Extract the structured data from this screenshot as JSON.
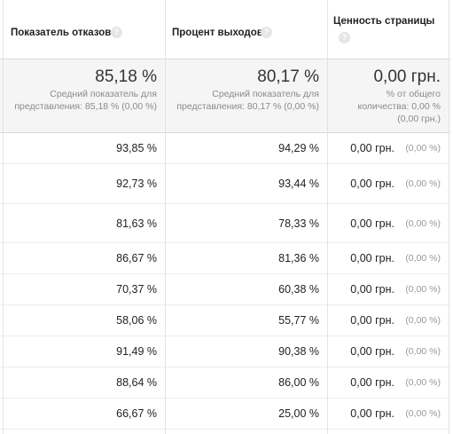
{
  "headers": {
    "bounce_rate": "Показатель отказов",
    "exit_rate": "Процент выходов",
    "page_value": "Ценность страницы"
  },
  "summary": {
    "bounce_rate": {
      "value": "85,18 %",
      "sub1": "Средний показатель для",
      "sub2": "представления: 85,18 % (0,00 %)"
    },
    "exit_rate": {
      "value": "80,17 %",
      "sub1": "Средний показатель для",
      "sub2": "представления: 80,17 % (0,00 %)"
    },
    "page_value": {
      "value": "0,00 грн.",
      "sub1": "% от общего",
      "sub2": "количества: 0,00 %",
      "sub3": "(0,00 грн.)"
    }
  },
  "rows": [
    {
      "bounce": "93,85 %",
      "exit": "94,29 %",
      "value": "0,00 грн.",
      "value_pct": "(0,00 %)"
    },
    {
      "bounce": "92,73 %",
      "exit": "93,44 %",
      "value": "0,00 грн.",
      "value_pct": "(0,00 %)"
    },
    {
      "bounce": "81,63 %",
      "exit": "78,33 %",
      "value": "0,00 грн.",
      "value_pct": "(0,00 %)"
    },
    {
      "bounce": "86,67 %",
      "exit": "81,36 %",
      "value": "0,00 грн.",
      "value_pct": "(0,00 %)"
    },
    {
      "bounce": "70,37 %",
      "exit": "60,38 %",
      "value": "0,00 грн.",
      "value_pct": "(0,00 %)"
    },
    {
      "bounce": "58,06 %",
      "exit": "55,77 %",
      "value": "0,00 грн.",
      "value_pct": "(0,00 %)"
    },
    {
      "bounce": "91,49 %",
      "exit": "90,38 %",
      "value": "0,00 грн.",
      "value_pct": "(0,00 %)"
    },
    {
      "bounce": "88,64 %",
      "exit": "86,00 %",
      "value": "0,00 грн.",
      "value_pct": "(0,00 %)"
    },
    {
      "bounce": "66,67 %",
      "exit": "25,00 %",
      "value": "0,00 грн.",
      "value_pct": "(0,00 %)"
    }
  ],
  "icons": {
    "help": "?"
  }
}
